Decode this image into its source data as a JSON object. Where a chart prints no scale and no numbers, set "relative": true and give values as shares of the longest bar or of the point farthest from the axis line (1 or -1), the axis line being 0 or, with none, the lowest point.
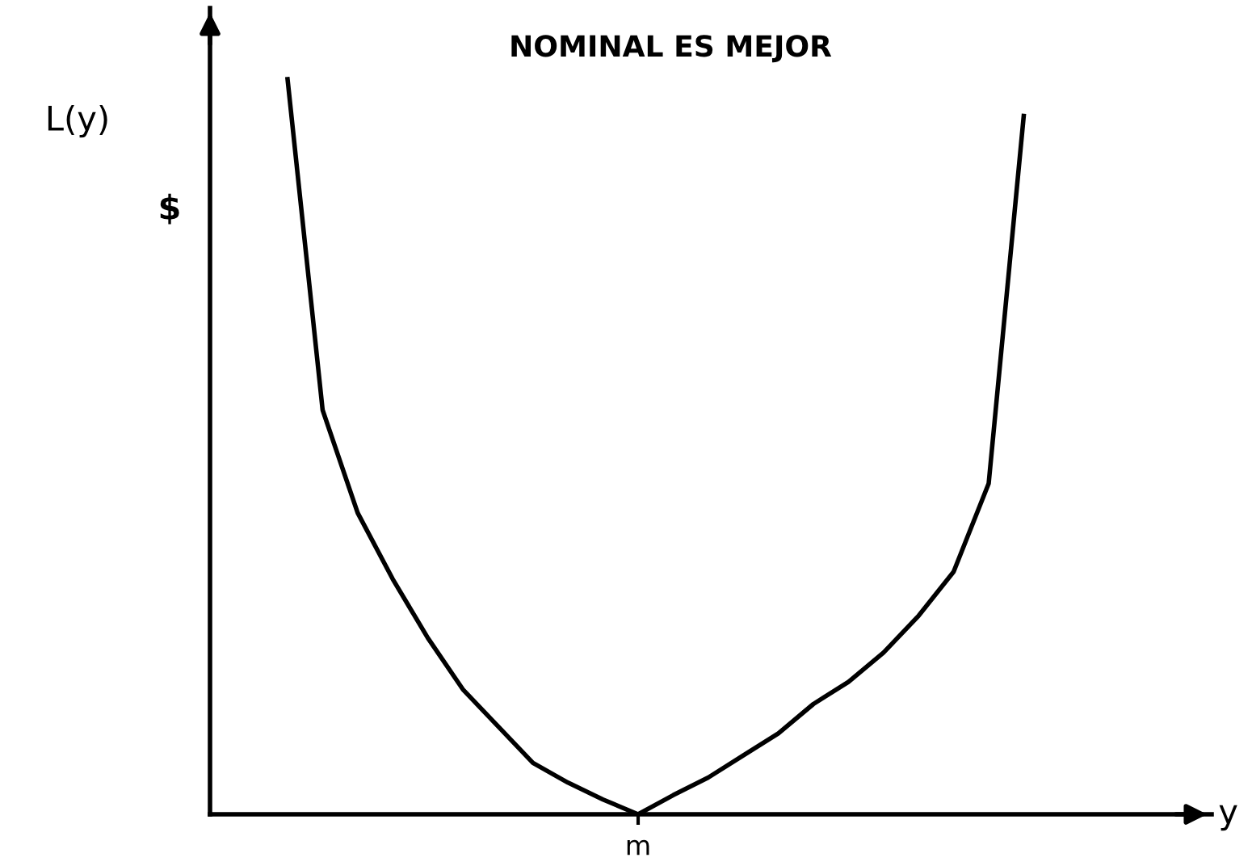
{
  "chart_data": {
    "type": "line",
    "title": "NOMINAL ES MEJOR",
    "ylabel": "L(y)",
    "annotations": [
      "$",
      "m",
      "y"
    ],
    "relative": true,
    "categories": [
      null,
      null,
      null,
      null,
      null,
      null,
      null,
      null,
      null,
      null,
      null,
      null,
      null,
      null,
      null,
      null,
      null,
      null,
      null,
      null,
      null,
      null
    ],
    "series": [
      {
        "color": "#000000",
        "values": [
          1.0,
          0.55,
          0.41,
          0.32,
          0.24,
          0.17,
          0.12,
          0.07,
          0.043,
          0.02,
          0,
          0.026,
          0.05,
          0.08,
          0.11,
          0.15,
          0.18,
          0.22,
          0.27,
          0.33,
          0.45,
          0.95
        ]
      }
    ],
    "marker": "none",
    "line_style": "solid"
  }
}
